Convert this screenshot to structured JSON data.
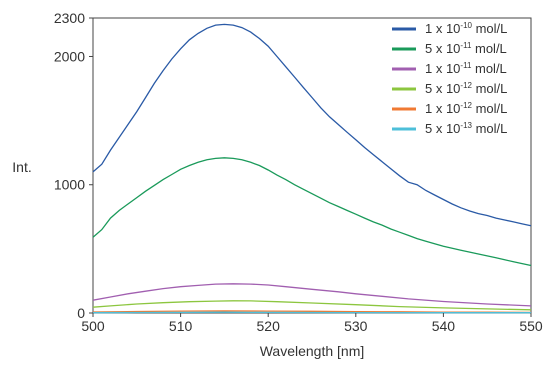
{
  "chart_data": {
    "type": "line",
    "xlabel": "Wavelength [nm]",
    "ylabel": "Int.",
    "xlim": [
      500,
      550
    ],
    "ylim": [
      0,
      2300
    ],
    "xticks": [
      500,
      510,
      520,
      530,
      540,
      550
    ],
    "yticks": [
      0,
      1000,
      2000,
      2300
    ],
    "grid": false,
    "legend_position": "top-right",
    "series": [
      {
        "name": "1 x 10-10 mol/L",
        "legend": {
          "base": "1 x 10",
          "exp": "-10",
          "unit": " mol/L"
        },
        "color": "#2a5aa6",
        "points": [
          [
            500,
            1100
          ],
          [
            501,
            1160
          ],
          [
            502,
            1270
          ],
          [
            503,
            1370
          ],
          [
            504,
            1470
          ],
          [
            505,
            1570
          ],
          [
            506,
            1680
          ],
          [
            507,
            1790
          ],
          [
            508,
            1890
          ],
          [
            509,
            1980
          ],
          [
            510,
            2060
          ],
          [
            511,
            2130
          ],
          [
            512,
            2180
          ],
          [
            513,
            2220
          ],
          [
            514,
            2245
          ],
          [
            515,
            2250
          ],
          [
            516,
            2245
          ],
          [
            517,
            2225
          ],
          [
            518,
            2190
          ],
          [
            519,
            2140
          ],
          [
            520,
            2080
          ],
          [
            521,
            2000
          ],
          [
            522,
            1920
          ],
          [
            523,
            1840
          ],
          [
            524,
            1760
          ],
          [
            525,
            1680
          ],
          [
            526,
            1600
          ],
          [
            527,
            1530
          ],
          [
            528,
            1470
          ],
          [
            529,
            1410
          ],
          [
            530,
            1350
          ],
          [
            531,
            1290
          ],
          [
            532,
            1235
          ],
          [
            533,
            1180
          ],
          [
            534,
            1125
          ],
          [
            535,
            1070
          ],
          [
            536,
            1020
          ],
          [
            537,
            1000
          ],
          [
            538,
            955
          ],
          [
            539,
            920
          ],
          [
            540,
            885
          ],
          [
            541,
            850
          ],
          [
            542,
            820
          ],
          [
            543,
            795
          ],
          [
            544,
            775
          ],
          [
            545,
            760
          ],
          [
            546,
            740
          ],
          [
            547,
            725
          ],
          [
            548,
            710
          ],
          [
            549,
            695
          ],
          [
            550,
            680
          ]
        ]
      },
      {
        "name": "5 x 10-11 mol/L",
        "legend": {
          "base": "5 x 10",
          "exp": "-11",
          "unit": " mol/L"
        },
        "color": "#1a9a5a",
        "points": [
          [
            500,
            590
          ],
          [
            501,
            650
          ],
          [
            502,
            740
          ],
          [
            503,
            800
          ],
          [
            504,
            850
          ],
          [
            505,
            900
          ],
          [
            506,
            950
          ],
          [
            507,
            995
          ],
          [
            508,
            1040
          ],
          [
            509,
            1080
          ],
          [
            510,
            1120
          ],
          [
            511,
            1150
          ],
          [
            512,
            1175
          ],
          [
            513,
            1195
          ],
          [
            514,
            1205
          ],
          [
            515,
            1210
          ],
          [
            516,
            1205
          ],
          [
            517,
            1195
          ],
          [
            518,
            1175
          ],
          [
            519,
            1150
          ],
          [
            520,
            1115
          ],
          [
            521,
            1075
          ],
          [
            522,
            1040
          ],
          [
            523,
            1000
          ],
          [
            524,
            965
          ],
          [
            525,
            930
          ],
          [
            526,
            895
          ],
          [
            527,
            860
          ],
          [
            528,
            830
          ],
          [
            529,
            800
          ],
          [
            530,
            770
          ],
          [
            531,
            740
          ],
          [
            532,
            710
          ],
          [
            533,
            685
          ],
          [
            534,
            655
          ],
          [
            535,
            630
          ],
          [
            536,
            605
          ],
          [
            537,
            580
          ],
          [
            538,
            560
          ],
          [
            539,
            540
          ],
          [
            540,
            520
          ],
          [
            541,
            505
          ],
          [
            542,
            490
          ],
          [
            543,
            475
          ],
          [
            544,
            460
          ],
          [
            545,
            445
          ],
          [
            546,
            430
          ],
          [
            547,
            415
          ],
          [
            548,
            400
          ],
          [
            549,
            385
          ],
          [
            550,
            370
          ]
        ]
      },
      {
        "name": "1 x 10-11 mol/L",
        "legend": {
          "base": "1 x 10",
          "exp": "-11",
          "unit": " mol/L"
        },
        "color": "#a15fb0",
        "points": [
          [
            500,
            100
          ],
          [
            502,
            125
          ],
          [
            504,
            150
          ],
          [
            506,
            170
          ],
          [
            508,
            190
          ],
          [
            510,
            205
          ],
          [
            512,
            215
          ],
          [
            514,
            225
          ],
          [
            516,
            228
          ],
          [
            518,
            225
          ],
          [
            520,
            218
          ],
          [
            522,
            205
          ],
          [
            525,
            185
          ],
          [
            528,
            165
          ],
          [
            530,
            150
          ],
          [
            533,
            130
          ],
          [
            536,
            110
          ],
          [
            540,
            90
          ],
          [
            545,
            70
          ],
          [
            550,
            55
          ]
        ]
      },
      {
        "name": "5 x 10-12 mol/L",
        "legend": {
          "base": "5 x 10",
          "exp": "-12",
          "unit": " mol/L"
        },
        "color": "#8cc63f",
        "points": [
          [
            500,
            45
          ],
          [
            502,
            55
          ],
          [
            505,
            70
          ],
          [
            508,
            80
          ],
          [
            511,
            88
          ],
          [
            514,
            93
          ],
          [
            516,
            95
          ],
          [
            518,
            94
          ],
          [
            521,
            88
          ],
          [
            525,
            78
          ],
          [
            530,
            65
          ],
          [
            535,
            50
          ],
          [
            540,
            40
          ],
          [
            545,
            32
          ],
          [
            550,
            25
          ]
        ]
      },
      {
        "name": "1 x 10-12 mol/L",
        "legend": {
          "base": "1 x 10",
          "exp": "-12",
          "unit": " mol/L"
        },
        "color": "#f07a33",
        "points": [
          [
            500,
            8
          ],
          [
            505,
            12
          ],
          [
            510,
            15
          ],
          [
            515,
            16
          ],
          [
            520,
            15
          ],
          [
            525,
            13
          ],
          [
            530,
            11
          ],
          [
            535,
            9
          ],
          [
            540,
            7
          ],
          [
            545,
            6
          ],
          [
            550,
            5
          ]
        ]
      },
      {
        "name": "5 x 10-13 mol/L",
        "legend": {
          "base": "5 x 10",
          "exp": "-13",
          "unit": " mol/L"
        },
        "color": "#4dbfd9",
        "points": [
          [
            500,
            2
          ],
          [
            505,
            4
          ],
          [
            510,
            5
          ],
          [
            515,
            6
          ],
          [
            520,
            5
          ],
          [
            525,
            4
          ],
          [
            530,
            3
          ],
          [
            535,
            3
          ],
          [
            540,
            2
          ],
          [
            545,
            2
          ],
          [
            550,
            2
          ]
        ]
      }
    ]
  }
}
